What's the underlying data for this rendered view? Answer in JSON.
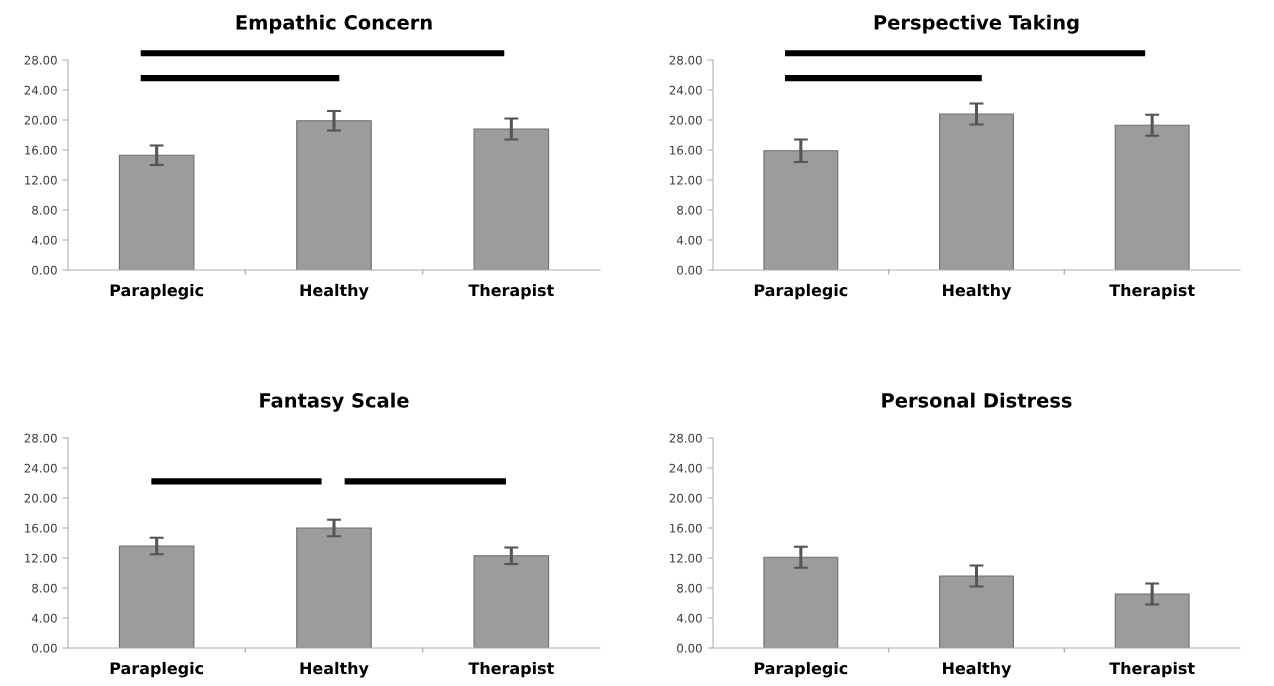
{
  "chart_data": [
    {
      "type": "bar",
      "title": "Empathic Concern",
      "categories": [
        "Paraplegic",
        "Healthy",
        "Therapist"
      ],
      "values": [
        15.3,
        19.9,
        18.8
      ],
      "errors": [
        1.3,
        1.3,
        1.4
      ],
      "color": "#9c9c9c",
      "ylim": [
        0,
        28
      ],
      "yticks": [
        {
          "value": 0,
          "label": "0.00"
        },
        {
          "value": 4,
          "label": "4.00"
        },
        {
          "value": 8,
          "label": "8.00"
        },
        {
          "value": 12,
          "label": "12.00"
        },
        {
          "value": 16,
          "label": "16.00"
        },
        {
          "value": 20,
          "label": "20.00"
        },
        {
          "value": 24,
          "label": "24.00"
        },
        {
          "value": 28,
          "label": "28.00"
        }
      ],
      "grid": false,
      "legend": false
    },
    {
      "type": "bar",
      "title": "Perspective Taking",
      "categories": [
        "Paraplegic",
        "Healthy",
        "Therapist"
      ],
      "values": [
        15.9,
        20.8,
        19.3
      ],
      "errors": [
        1.5,
        1.4,
        1.4
      ],
      "color": "#9c9c9c",
      "ylim": [
        0,
        28
      ],
      "yticks": [
        {
          "value": 0,
          "label": "0.00"
        },
        {
          "value": 4,
          "label": "4.00"
        },
        {
          "value": 8,
          "label": "8.00"
        },
        {
          "value": 12,
          "label": "12.00"
        },
        {
          "value": 16,
          "label": "16.00"
        },
        {
          "value": 20,
          "label": "20.00"
        },
        {
          "value": 24,
          "label": "24.00"
        },
        {
          "value": 28,
          "label": "28.00"
        }
      ],
      "grid": false,
      "legend": false
    },
    {
      "type": "bar",
      "title": "Fantasy Scale",
      "categories": [
        "Paraplegic",
        "Healthy",
        "Therapist"
      ],
      "values": [
        13.6,
        16.0,
        12.3
      ],
      "errors": [
        1.1,
        1.1,
        1.1
      ],
      "color": "#9c9c9c",
      "ylim": [
        0,
        28
      ],
      "yticks": [
        {
          "value": 0,
          "label": "0.00"
        },
        {
          "value": 4,
          "label": "4.00"
        },
        {
          "value": 8,
          "label": "8.00"
        },
        {
          "value": 12,
          "label": "12.00"
        },
        {
          "value": 16,
          "label": "16.00"
        },
        {
          "value": 20,
          "label": "20.00"
        },
        {
          "value": 24,
          "label": "24.00"
        },
        {
          "value": 28,
          "label": "28.00"
        }
      ],
      "grid": false,
      "legend": false
    },
    {
      "type": "bar",
      "title": "Personal Distress",
      "categories": [
        "Paraplegic",
        "Healthy",
        "Therapist"
      ],
      "values": [
        12.1,
        9.6,
        7.2
      ],
      "errors": [
        1.4,
        1.4,
        1.4
      ],
      "color": "#9c9c9c",
      "ylim": [
        0,
        28
      ],
      "yticks": [
        {
          "value": 0,
          "label": "0.00"
        },
        {
          "value": 4,
          "label": "4.00"
        },
        {
          "value": 8,
          "label": "8.00"
        },
        {
          "value": 12,
          "label": "12.00"
        },
        {
          "value": 16,
          "label": "16.00"
        },
        {
          "value": 20,
          "label": "20.00"
        },
        {
          "value": 24,
          "label": "24.00"
        },
        {
          "value": 28,
          "label": "28.00"
        }
      ],
      "grid": false,
      "legend": false
    }
  ]
}
